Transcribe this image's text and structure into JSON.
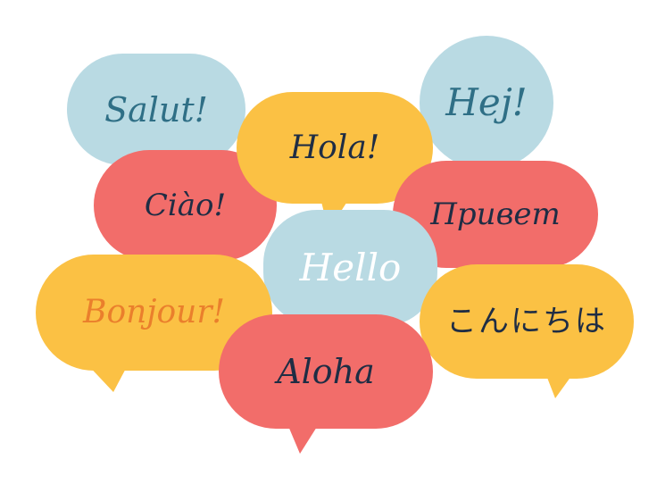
{
  "colors": {
    "blue": "#b9dae3",
    "yellow": "#fbc144",
    "red": "#f26d6a",
    "text_dark": "#1f2d44",
    "text_blue": "#2f6f86",
    "text_orange": "#ea7f2c",
    "text_white": "#ffffff"
  },
  "greetings": {
    "salut": "Salut!",
    "hola": "Hola!",
    "hej": "Hej!",
    "ciao": "Ciào!",
    "privet": "Привет",
    "hello": "Hello",
    "bonjour": "Bonjour!",
    "konnichiwa": "こんにちは",
    "aloha": "Aloha"
  }
}
